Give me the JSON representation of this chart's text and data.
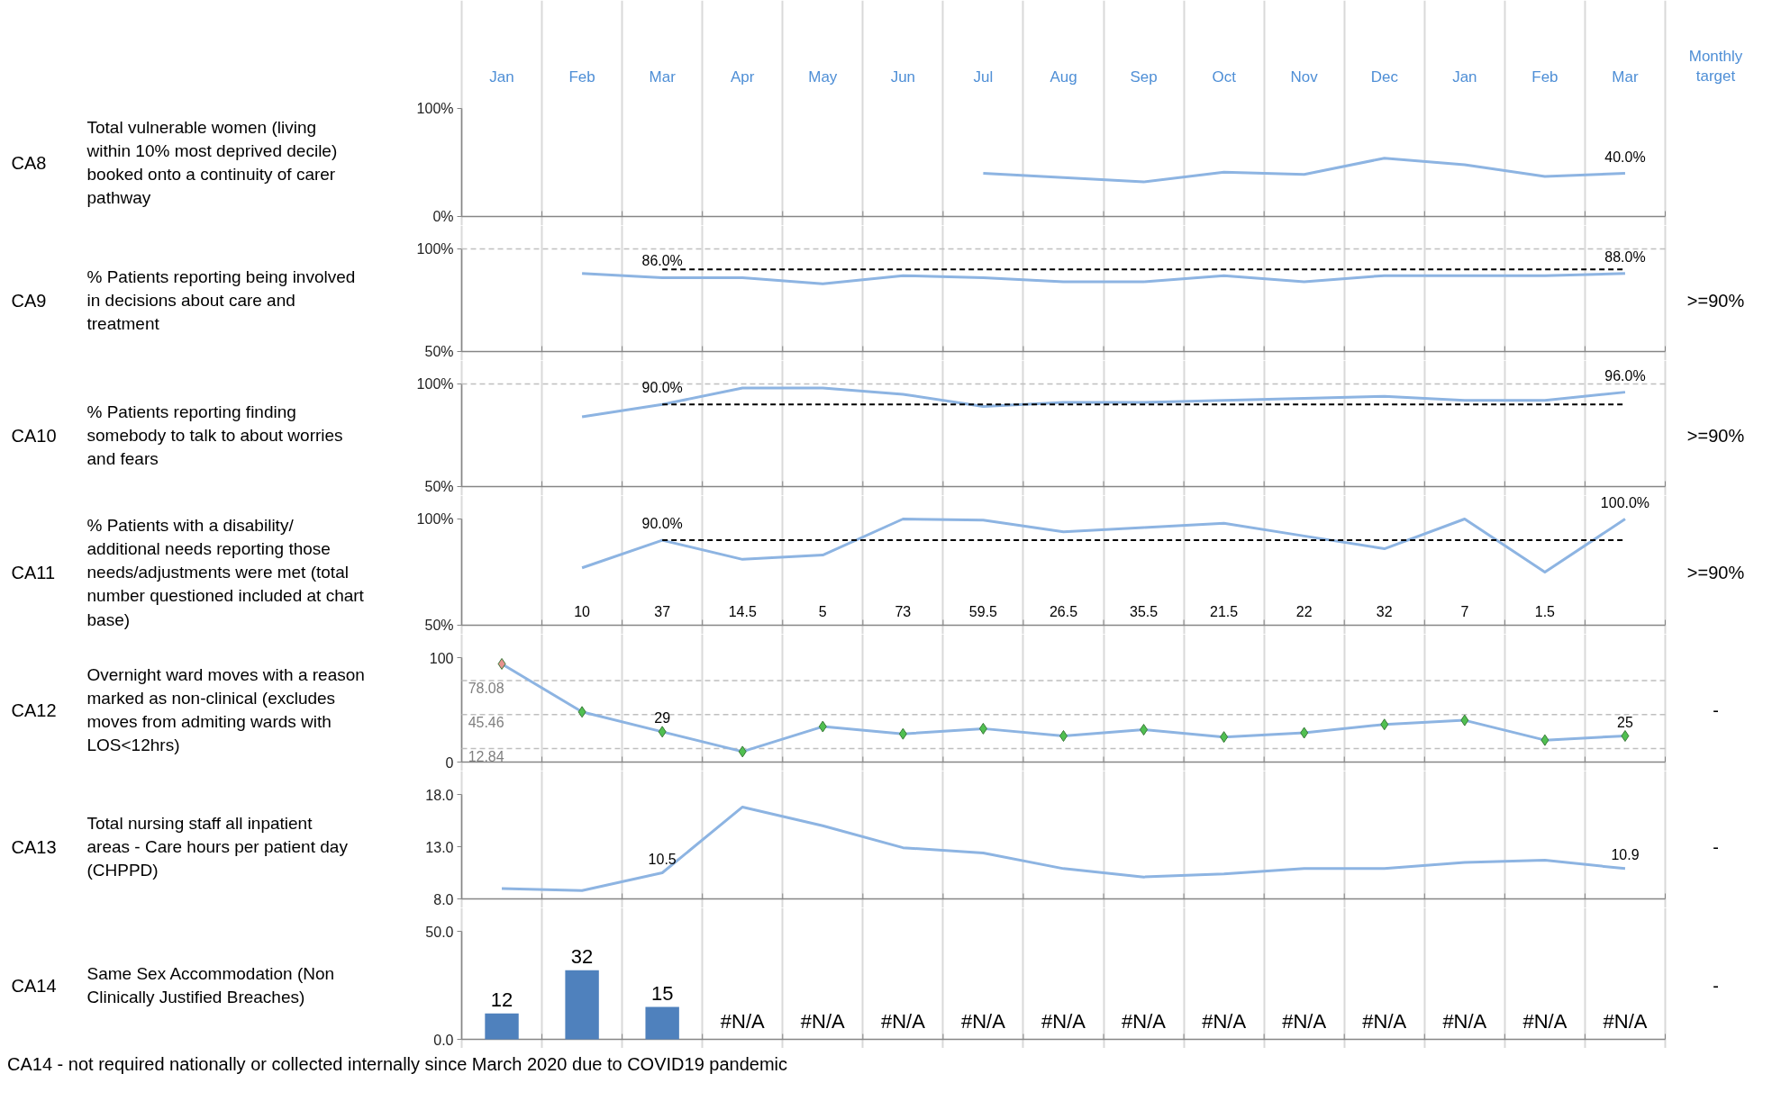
{
  "chart_data": [
    {
      "type": "line",
      "title": "Total vulnerable women (living within 10% most deprived decile) booked onto a continuity of carer pathway",
      "categories": [
        "Jan",
        "Feb",
        "Mar",
        "Apr",
        "May",
        "Jun",
        "Jul",
        "Aug",
        "Sep",
        "Oct",
        "Nov",
        "Dec",
        "Jan",
        "Feb",
        "Mar"
      ],
      "ylim": [
        0,
        100
      ],
      "yticks": [
        {
          "value": 0,
          "label": "0%"
        },
        {
          "value": 100,
          "label": "100%"
        }
      ],
      "grid": "x",
      "annotations": [
        "CA8",
        "Monthly target"
      ],
      "series": [
        {
          "color": "#8db4e2",
          "values": [
            null,
            null,
            null,
            null,
            null,
            null,
            40,
            36,
            32,
            41,
            39,
            54,
            48,
            37,
            40
          ],
          "value_labels": [
            null,
            null,
            null,
            null,
            null,
            null,
            null,
            null,
            null,
            null,
            null,
            null,
            null,
            null,
            "40.0%"
          ]
        }
      ]
    },
    {
      "type": "line",
      "title": "% Patients reporting being involved in decisions about care and treatment",
      "categories": [
        "Jan",
        "Feb",
        "Mar",
        "Apr",
        "May",
        "Jun",
        "Jul",
        "Aug",
        "Sep",
        "Oct",
        "Nov",
        "Dec",
        "Jan",
        "Feb",
        "Mar"
      ],
      "ylim": [
        50,
        100
      ],
      "yticks": [
        {
          "value": 50,
          "label": "50%"
        },
        {
          "value": 100,
          "label": "100%"
        }
      ],
      "grid": "x",
      "tick_labels": "y",
      "annotations": [
        "CA9",
        ">=90%"
      ],
      "ref_lines": [
        {
          "axis": "y",
          "value": 100,
          "color": "#bfbfbf",
          "line_style": "dashed"
        }
      ],
      "series": [
        {
          "color": "#8db4e2",
          "values": [
            null,
            88,
            86,
            86,
            83,
            87,
            86,
            84,
            84,
            87,
            84,
            87,
            87,
            87,
            88
          ],
          "value_labels": [
            null,
            null,
            "86.0%",
            null,
            null,
            null,
            null,
            null,
            null,
            null,
            null,
            null,
            null,
            null,
            "88.0%"
          ]
        },
        {
          "color": "#000000",
          "line_style": "dashed",
          "values": [
            null,
            null,
            90,
            90,
            90,
            90,
            90,
            90,
            90,
            90,
            90,
            90,
            90,
            90,
            90
          ]
        }
      ]
    },
    {
      "type": "line",
      "title": "% Patients reporting finding somebody to talk to about worries and fears",
      "categories": [
        "Jan",
        "Feb",
        "Mar",
        "Apr",
        "May",
        "Jun",
        "Jul",
        "Aug",
        "Sep",
        "Oct",
        "Nov",
        "Dec",
        "Jan",
        "Feb",
        "Mar"
      ],
      "ylim": [
        50,
        100
      ],
      "yticks": [
        {
          "value": 50,
          "label": "50%"
        },
        {
          "value": 100,
          "label": "100%"
        }
      ],
      "grid": "x",
      "tick_labels": "y",
      "annotations": [
        "CA10",
        ">=90%"
      ],
      "ref_lines": [
        {
          "axis": "y",
          "value": 100,
          "color": "#bfbfbf",
          "line_style": "dashed"
        }
      ],
      "series": [
        {
          "color": "#8db4e2",
          "values": [
            null,
            84,
            90,
            98,
            98,
            95,
            89,
            91,
            91,
            92,
            93,
            94,
            92,
            92,
            96
          ],
          "value_labels": [
            null,
            null,
            "90.0%",
            null,
            null,
            null,
            null,
            null,
            null,
            null,
            null,
            null,
            null,
            null,
            "96.0%"
          ]
        },
        {
          "color": "#000000",
          "line_style": "dashed",
          "values": [
            null,
            null,
            90,
            90,
            90,
            90,
            90,
            90,
            90,
            90,
            90,
            90,
            90,
            90,
            90
          ]
        }
      ]
    },
    {
      "type": "line",
      "title": "% Patients with a disability/ additional needs reporting those needs/adjustments were met (total number questioned included at chart base)",
      "categories": [
        "Jan",
        "Feb",
        "Mar",
        "Apr",
        "May",
        "Jun",
        "Jul",
        "Aug",
        "Sep",
        "Oct",
        "Nov",
        "Dec",
        "Jan",
        "Feb",
        "Mar"
      ],
      "ylim": [
        50,
        100
      ],
      "yticks": [
        {
          "value": 50,
          "label": "50%"
        },
        {
          "value": 100,
          "label": "100%"
        }
      ],
      "grid": "x",
      "tick_labels": "y",
      "annotations": [
        "CA11",
        ">=90%",
        "10",
        "37",
        "14.5",
        "5",
        "73",
        "59.5",
        "26.5",
        "35.5",
        "21.5",
        "22",
        "32",
        "7",
        "1.5"
      ],
      "series": [
        {
          "color": "#8db4e2",
          "values": [
            null,
            77,
            90,
            81,
            83,
            100,
            99.5,
            94,
            96,
            98,
            92,
            86,
            100,
            75,
            100
          ],
          "value_labels": [
            null,
            null,
            "90.0%",
            null,
            null,
            null,
            null,
            null,
            null,
            null,
            null,
            null,
            null,
            null,
            "100.0%"
          ]
        },
        {
          "color": "#000000",
          "line_style": "dashed",
          "values": [
            null,
            null,
            90,
            90,
            90,
            90,
            90,
            90,
            90,
            90,
            90,
            90,
            90,
            90,
            90
          ]
        }
      ]
    },
    {
      "type": "line",
      "title": "Overnight ward moves with a reason marked as non-clinical (excludes moves from admiting wards with LOS<12hrs)",
      "categories": [
        "Jan",
        "Feb",
        "Mar",
        "Apr",
        "May",
        "Jun",
        "Jul",
        "Aug",
        "Sep",
        "Oct",
        "Nov",
        "Dec",
        "Jan",
        "Feb",
        "Mar"
      ],
      "ylim": [
        0,
        100
      ],
      "yticks": [
        0,
        100
      ],
      "grid": "x",
      "tick_labels": "y",
      "marker": "diamond",
      "annotations": [
        "CA12",
        "-"
      ],
      "ref_lines": [
        {
          "axis": "y",
          "value": 78.08,
          "label": "78.08",
          "color": "#bfbfbf",
          "line_style": "dashed"
        },
        {
          "axis": "y",
          "value": 45.46,
          "label": "45.46",
          "color": "#bfbfbf",
          "line_style": "dashed"
        },
        {
          "axis": "y",
          "value": 12.84,
          "label": "12.84",
          "color": "#bfbfbf",
          "line_style": "dashed"
        }
      ],
      "series": [
        {
          "color": "#8db4e2",
          "colors": [
            "#e6928f",
            "#50c050",
            "#50c050",
            "#50c050",
            "#50c050",
            "#50c050",
            "#50c050",
            "#50c050",
            "#50c050",
            "#50c050",
            "#50c050",
            "#50c050",
            "#50c050",
            "#50c050",
            "#50c050"
          ],
          "values": [
            94,
            48,
            29,
            10,
            34,
            27,
            32,
            25,
            31,
            24,
            28,
            36,
            40,
            21,
            25
          ],
          "value_labels": [
            null,
            null,
            "29",
            null,
            null,
            null,
            null,
            null,
            null,
            null,
            null,
            null,
            null,
            null,
            "25"
          ]
        }
      ]
    },
    {
      "type": "line",
      "title": "Total nursing staff all inpatient areas - Care hours per patient day (CHPPD)",
      "categories": [
        "Jan",
        "Feb",
        "Mar",
        "Apr",
        "May",
        "Jun",
        "Jul",
        "Aug",
        "Sep",
        "Oct",
        "Nov",
        "Dec",
        "Jan",
        "Feb",
        "Mar"
      ],
      "ylim": [
        8,
        18
      ],
      "yticks": [
        {
          "value": 8,
          "label": "8.0"
        },
        {
          "value": 13,
          "label": "13.0"
        },
        {
          "value": 18,
          "label": "18.0"
        }
      ],
      "grid": "x",
      "tick_labels": "y",
      "annotations": [
        "CA13",
        "-"
      ],
      "series": [
        {
          "color": "#8db4e2",
          "values": [
            9.0,
            8.8,
            10.5,
            16.8,
            15.0,
            12.9,
            12.4,
            10.9,
            10.1,
            10.4,
            10.9,
            10.9,
            11.5,
            11.7,
            10.9
          ],
          "value_labels": [
            null,
            null,
            "10.5",
            null,
            null,
            null,
            null,
            null,
            null,
            null,
            null,
            null,
            null,
            null,
            "10.9"
          ]
        }
      ]
    },
    {
      "type": "bar",
      "title": "Same Sex Accommodation (Non Clinically Justified Breaches)",
      "categories": [
        "Jan",
        "Feb",
        "Mar",
        "Apr",
        "May",
        "Jun",
        "Jul",
        "Aug",
        "Sep",
        "Oct",
        "Nov",
        "Dec",
        "Jan",
        "Feb",
        "Mar"
      ],
      "ylim": [
        0,
        50
      ],
      "yticks": [
        {
          "value": 0,
          "label": "0.0"
        },
        {
          "value": 50,
          "label": "50.0"
        }
      ],
      "grid": "x",
      "tick_labels": "y",
      "annotations": [
        "CA14",
        "-",
        "CA14 - not required nationally or collected internally since March 2020 due to COVID19 pandemic"
      ],
      "series": [
        {
          "color": "#4f81bd",
          "values": [
            12,
            32,
            15,
            null,
            null,
            null,
            null,
            null,
            null,
            null,
            null,
            null,
            null,
            null,
            null
          ],
          "value_labels": [
            "12",
            "32",
            "15",
            "#N/A",
            "#N/A",
            "#N/A",
            "#N/A",
            "#N/A",
            "#N/A",
            "#N/A",
            "#N/A",
            "#N/A",
            "#N/A",
            "#N/A",
            "#N/A"
          ]
        }
      ]
    }
  ]
}
